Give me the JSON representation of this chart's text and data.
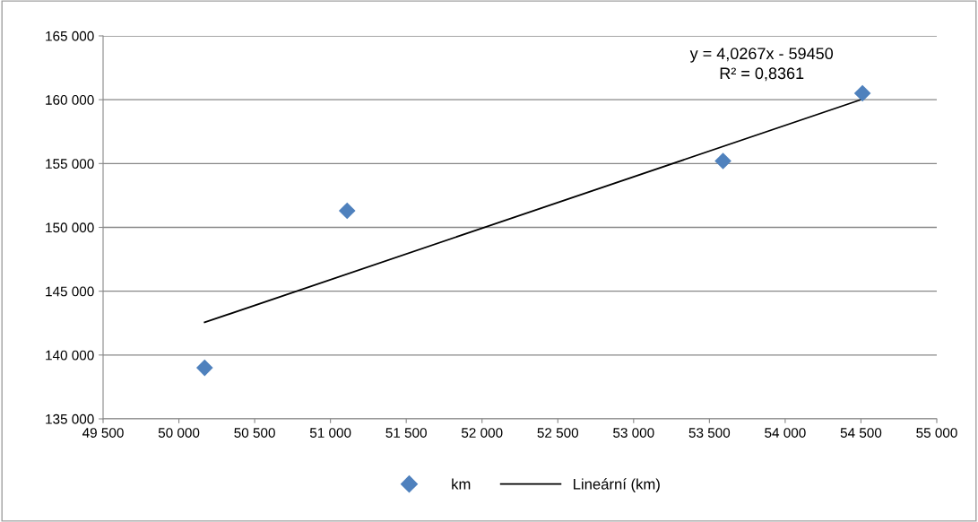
{
  "chart_data": {
    "type": "scatter",
    "x": [
      50170,
      51110,
      53590,
      54510
    ],
    "series": [
      {
        "name": "km",
        "color": "#4f81bd",
        "values": [
          139000,
          151300,
          155200,
          160500
        ],
        "marker": "diamond"
      },
      {
        "name": "Lineární (km)",
        "type": "line",
        "color": "#000000",
        "x": [
          50170,
          54510
        ],
        "values": [
          142560,
          160045
        ],
        "marker": "none",
        "line_style": "solid"
      }
    ],
    "xlim": [
      49500,
      55000
    ],
    "xticks": [
      {
        "value": 49500,
        "label": "49 500"
      },
      {
        "value": 50000,
        "label": "50 000"
      },
      {
        "value": 50500,
        "label": "50 500"
      },
      {
        "value": 51000,
        "label": "51 000"
      },
      {
        "value": 51500,
        "label": "51 500"
      },
      {
        "value": 52000,
        "label": "52 000"
      },
      {
        "value": 52500,
        "label": "52 500"
      },
      {
        "value": 53000,
        "label": "53 000"
      },
      {
        "value": 53500,
        "label": "53 500"
      },
      {
        "value": 54000,
        "label": "54 000"
      },
      {
        "value": 54500,
        "label": "54 500"
      },
      {
        "value": 55000,
        "label": "55 000"
      }
    ],
    "ylim": [
      135000,
      165000
    ],
    "yticks": [
      {
        "value": 135000,
        "label": "135 000"
      },
      {
        "value": 140000,
        "label": "140 000"
      },
      {
        "value": 145000,
        "label": "145 000"
      },
      {
        "value": 150000,
        "label": "150 000"
      },
      {
        "value": 155000,
        "label": "155 000"
      },
      {
        "value": 160000,
        "label": "160 000"
      },
      {
        "value": 165000,
        "label": "165 000"
      }
    ],
    "grid": "y",
    "legend": "bottom",
    "annotations": [
      "y = 4,0267x - 59450",
      "R² = 0,8361"
    ]
  }
}
